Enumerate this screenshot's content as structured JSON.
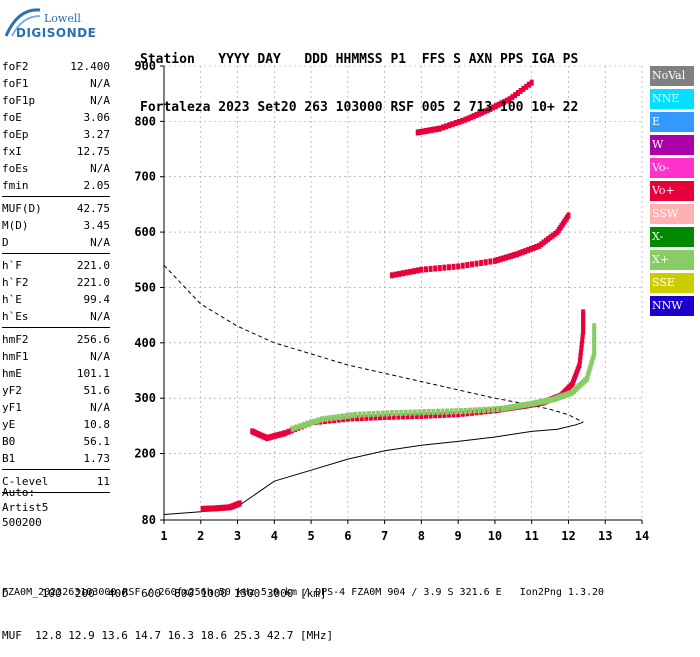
{
  "logo": {
    "line1": "Lowell",
    "line2": "DIGISONDE"
  },
  "header": {
    "line1": "Station   YYYY DAY   DDD HHMMSS P1  FFS S AXN PPS IGA PS",
    "line2": "Fortaleza 2023 Set20 263 103000 RSF 005 2 713 100 10+ 22"
  },
  "params": [
    {
      "label": "foF2",
      "value": "12.400"
    },
    {
      "label": "foF1",
      "value": "N/A"
    },
    {
      "label": "foF1p",
      "value": "N/A"
    },
    {
      "label": "foE",
      "value": "3.06"
    },
    {
      "label": "foEp",
      "value": "3.27"
    },
    {
      "label": "fxI",
      "value": "12.75"
    },
    {
      "label": "foEs",
      "value": "N/A"
    },
    {
      "label": "fmin",
      "value": "2.05"
    },
    {
      "sep": true
    },
    {
      "label": "MUF(D)",
      "value": "42.75"
    },
    {
      "label": "M(D)",
      "value": "3.45"
    },
    {
      "label": "D",
      "value": "N/A"
    },
    {
      "sep": true
    },
    {
      "label": "h`F",
      "value": "221.0"
    },
    {
      "label": "h`F2",
      "value": "221.0"
    },
    {
      "label": "h`E",
      "value": "99.4"
    },
    {
      "label": "h`Es",
      "value": "N/A"
    },
    {
      "sep": true
    },
    {
      "label": "hmF2",
      "value": "256.6"
    },
    {
      "label": "hmF1",
      "value": "N/A"
    },
    {
      "label": "hmE",
      "value": "101.1"
    },
    {
      "label": "yF2",
      "value": "51.6"
    },
    {
      "label": "yF1",
      "value": "N/A"
    },
    {
      "label": "yE",
      "value": "10.8"
    },
    {
      "label": "B0",
      "value": "56.1"
    },
    {
      "label": "B1",
      "value": "1.73"
    },
    {
      "sep": true
    },
    {
      "label": "C-level",
      "value": "11"
    },
    {
      "sep": true
    }
  ],
  "auto": {
    "line1": "Auto:",
    "line2": "Artist5",
    "line3": "500200"
  },
  "legend": [
    {
      "label": "NoVal",
      "color": "#808080"
    },
    {
      "label": "NNE",
      "color": "#00e0ff"
    },
    {
      "label": "E",
      "color": "#3399ff"
    },
    {
      "label": "W",
      "color": "#aa00aa"
    },
    {
      "label": "Vo-",
      "color": "#ff33cc"
    },
    {
      "label": "Vo+",
      "color": "#e8003a"
    },
    {
      "label": "SSW",
      "color": "#ffb0b0"
    },
    {
      "label": "X-",
      "color": "#008800"
    },
    {
      "label": "X+",
      "color": "#88cc66"
    },
    {
      "label": "SSE",
      "color": "#cccc00"
    },
    {
      "label": "NNW",
      "color": "#1a00cc"
    }
  ],
  "footer": {
    "line1": "D     100  200  400  600  800 1000 1500 3000 [km]",
    "line2": "MUF  12.8 12.9 13.6 14.7 16.3 18.6 25.3 42.7 [MHz]",
    "line3": "FZA0M_2023263103000.RSF / 260fx256h 50 kHz 5.0 km / DPS-4 FZA0M 904 / 3.9 S 321.6 E   Ion2Png 1.3.20"
  },
  "chart_data": {
    "type": "scatter",
    "xlim": [
      1,
      14
    ],
    "ylim": [
      80,
      900
    ],
    "x_ticks": [
      1,
      2,
      3,
      4,
      5,
      6,
      7,
      8,
      9,
      10,
      11,
      12,
      13,
      14
    ],
    "y_ticks": [
      80,
      200,
      300,
      400,
      500,
      600,
      700,
      800,
      900
    ],
    "grid": true,
    "echo_traces": [
      {
        "name": "F2-O",
        "color": "#e8003a",
        "points": [
          [
            3.4,
            240
          ],
          [
            3.8,
            228
          ],
          [
            4.3,
            237
          ],
          [
            5,
            256
          ],
          [
            6,
            263
          ],
          [
            7,
            266
          ],
          [
            8,
            268
          ],
          [
            9,
            271
          ],
          [
            10,
            278
          ],
          [
            10.8,
            286
          ],
          [
            11.3,
            292
          ],
          [
            11.8,
            305
          ],
          [
            12.1,
            325
          ],
          [
            12.3,
            360
          ],
          [
            12.4,
            420
          ],
          [
            12.4,
            455
          ]
        ]
      },
      {
        "name": "F2-X",
        "color": "#88cc66",
        "points": [
          [
            4.5,
            245
          ],
          [
            5.3,
            262
          ],
          [
            6.2,
            270
          ],
          [
            7.2,
            273
          ],
          [
            8.2,
            275
          ],
          [
            9.2,
            277
          ],
          [
            10.2,
            281
          ],
          [
            11,
            290
          ],
          [
            11.6,
            298
          ],
          [
            12.1,
            310
          ],
          [
            12.5,
            335
          ],
          [
            12.7,
            380
          ],
          [
            12.7,
            430
          ]
        ]
      },
      {
        "name": "2F2",
        "color": "#e8003a",
        "points": [
          [
            7.2,
            522
          ],
          [
            8,
            532
          ],
          [
            9,
            538
          ],
          [
            10,
            548
          ],
          [
            10.6,
            560
          ],
          [
            11.2,
            575
          ],
          [
            11.7,
            600
          ],
          [
            12,
            630
          ]
        ]
      },
      {
        "name": "3F2",
        "color": "#e8003a",
        "points": [
          [
            7.9,
            780
          ],
          [
            8.5,
            787
          ],
          [
            9.2,
            803
          ],
          [
            9.8,
            820
          ],
          [
            10.4,
            840
          ],
          [
            11,
            870
          ]
        ]
      },
      {
        "name": "E",
        "color": "#e8003a",
        "points": [
          [
            2.05,
            100
          ],
          [
            2.4,
            101
          ],
          [
            2.8,
            103
          ],
          [
            3.06,
            110
          ]
        ]
      }
    ],
    "profile_solid": [
      [
        1,
        90
      ],
      [
        2,
        95
      ],
      [
        3,
        104
      ],
      [
        4,
        150
      ],
      [
        5,
        170
      ],
      [
        6,
        190
      ],
      [
        7,
        205
      ],
      [
        8,
        215
      ],
      [
        9,
        222
      ],
      [
        10,
        230
      ],
      [
        11,
        240
      ],
      [
        11.7,
        244
      ],
      [
        12.2,
        252
      ],
      [
        12.4,
        256.6
      ]
    ],
    "profile_dashed": [
      [
        1,
        540
      ],
      [
        2,
        470
      ],
      [
        3,
        430
      ],
      [
        4,
        400
      ],
      [
        5,
        380
      ],
      [
        6,
        360
      ],
      [
        7,
        345
      ],
      [
        8,
        330
      ],
      [
        9,
        315
      ],
      [
        10,
        300
      ],
      [
        10.8,
        290
      ],
      [
        11.5,
        280
      ],
      [
        12,
        270
      ],
      [
        12.4,
        256.6
      ]
    ]
  }
}
